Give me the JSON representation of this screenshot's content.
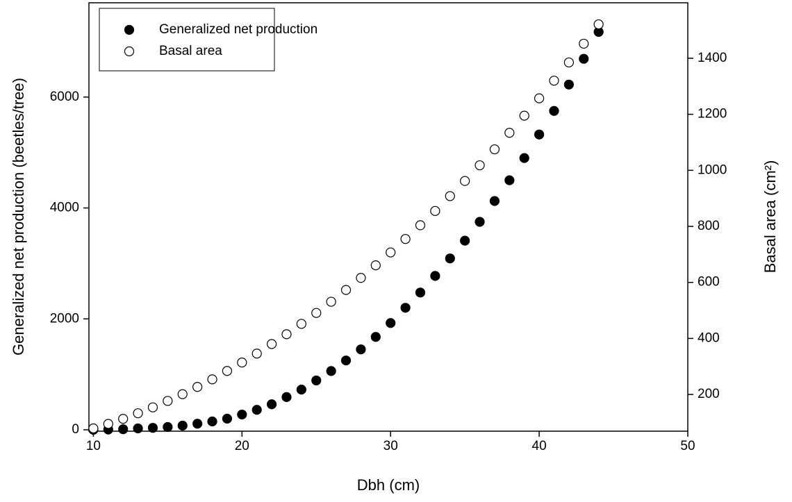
{
  "chart_data": {
    "type": "scatter",
    "x_label": "Dbh (cm)",
    "y_label": "Generalized net production (beetles/tree)",
    "y2_label": "Basal area (cm²)",
    "x": [
      10,
      11,
      12,
      13,
      14,
      15,
      16,
      17,
      18,
      19,
      20,
      21,
      22,
      23,
      24,
      25,
      26,
      27,
      28,
      29,
      30,
      31,
      32,
      33,
      34,
      35,
      36,
      37,
      38,
      39,
      40,
      41,
      42,
      43,
      44
    ],
    "series": [
      {
        "name": "Generalized net production",
        "color": "#000000",
        "filled": true,
        "values": [
          0,
          5,
          10,
          25,
          35,
          50,
          75,
          110,
          150,
          200,
          275,
          360,
          460,
          590,
          725,
          890,
          1060,
          1250,
          1450,
          1675,
          1925,
          2200,
          2475,
          2775,
          3090,
          3410,
          3750,
          4125,
          4500,
          4900,
          5325,
          5750,
          6225,
          6690,
          7175
        ]
      },
      {
        "name": "Basal area",
        "color": "#000000",
        "filled": false,
        "axis": "y2",
        "values": [
          79,
          95,
          113,
          133,
          154,
          177,
          201,
          227,
          254,
          284,
          314,
          346,
          380,
          415,
          452,
          491,
          531,
          573,
          616,
          661,
          707,
          755,
          804,
          855,
          908,
          962,
          1018,
          1075,
          1134,
          1195,
          1257,
          1320,
          1385,
          1452,
          1521
        ]
      }
    ],
    "xlim": [
      9.7,
      50
    ],
    "xticks": [
      10,
      20,
      30,
      40,
      50
    ],
    "ylim": [
      -25,
      7700
    ],
    "yticks": [
      0,
      2000,
      4000,
      6000
    ],
    "y2lim": [
      69,
      1598
    ],
    "y2ticks": [
      200,
      400,
      600,
      800,
      1000,
      1200,
      1400
    ],
    "legend": "upper left"
  }
}
